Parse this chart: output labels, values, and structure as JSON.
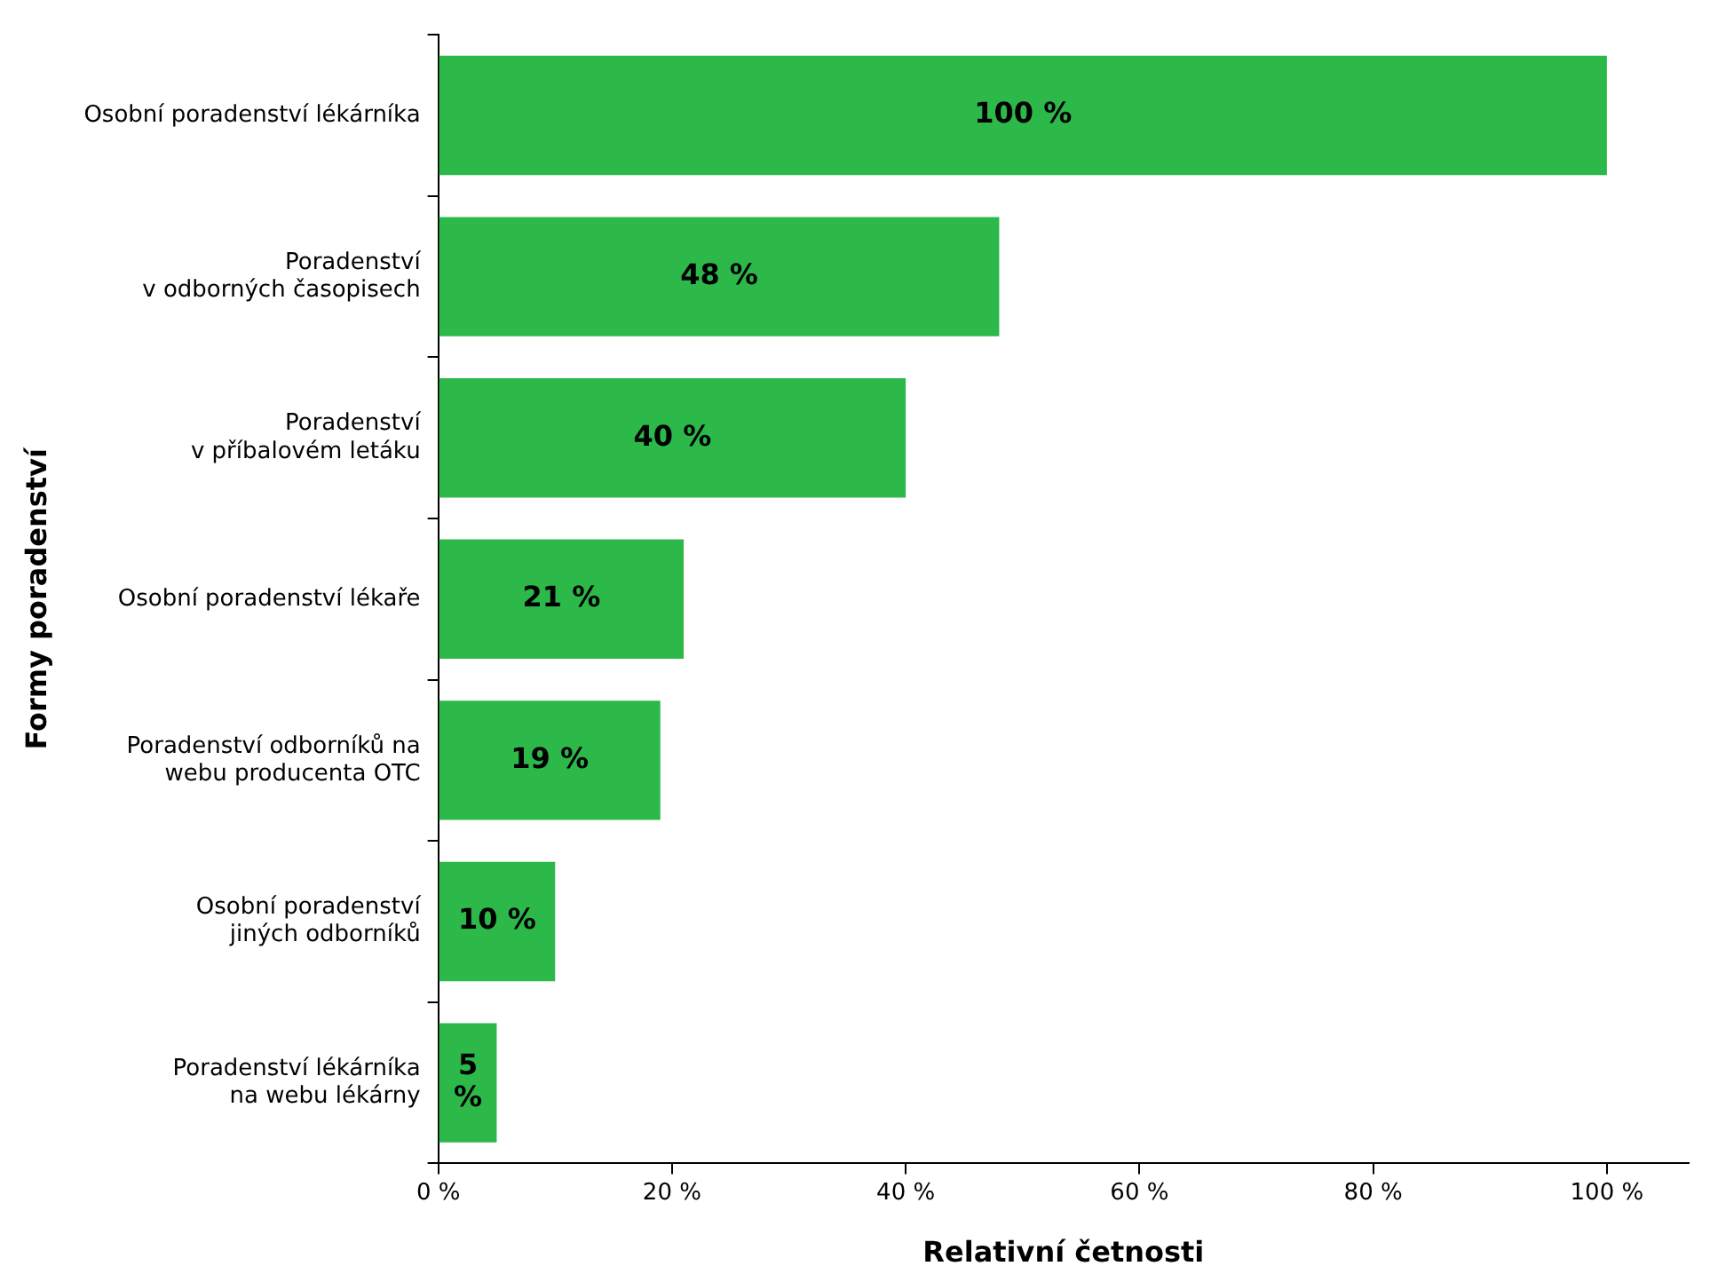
{
  "chart_data": {
    "type": "bar",
    "orientation": "horizontal",
    "xlabel": "Relativní četnosti",
    "ylabel": "Formy poradenství",
    "categories": [
      "Osobní poradenství lékárníka",
      "Poradenství\nv odborných časopisech",
      "Poradenství\nv příbalovém letáku",
      "Osobní poradenství lékaře",
      "Poradenství odborníků na\nwebu producenta OTC",
      "Osobní poradenství\njiných odborníků",
      "Poradenství lékárníka\nna webu lékárny"
    ],
    "values": [
      100,
      48,
      40,
      21,
      19,
      10,
      5
    ],
    "value_labels": [
      "100 %",
      "48 %",
      "40 %",
      "21 %",
      "19 %",
      "10 %",
      "5 %"
    ],
    "color": "#2db84a",
    "xlim": [
      0,
      107
    ],
    "xticks": [
      {
        "value": 0,
        "label": "0 %"
      },
      {
        "value": 20,
        "label": "20 %"
      },
      {
        "value": 40,
        "label": "40 %"
      },
      {
        "value": 60,
        "label": "60 %"
      },
      {
        "value": 80,
        "label": "80 %"
      },
      {
        "value": 100,
        "label": "100 %"
      }
    ],
    "grid": false,
    "legend": false
  }
}
